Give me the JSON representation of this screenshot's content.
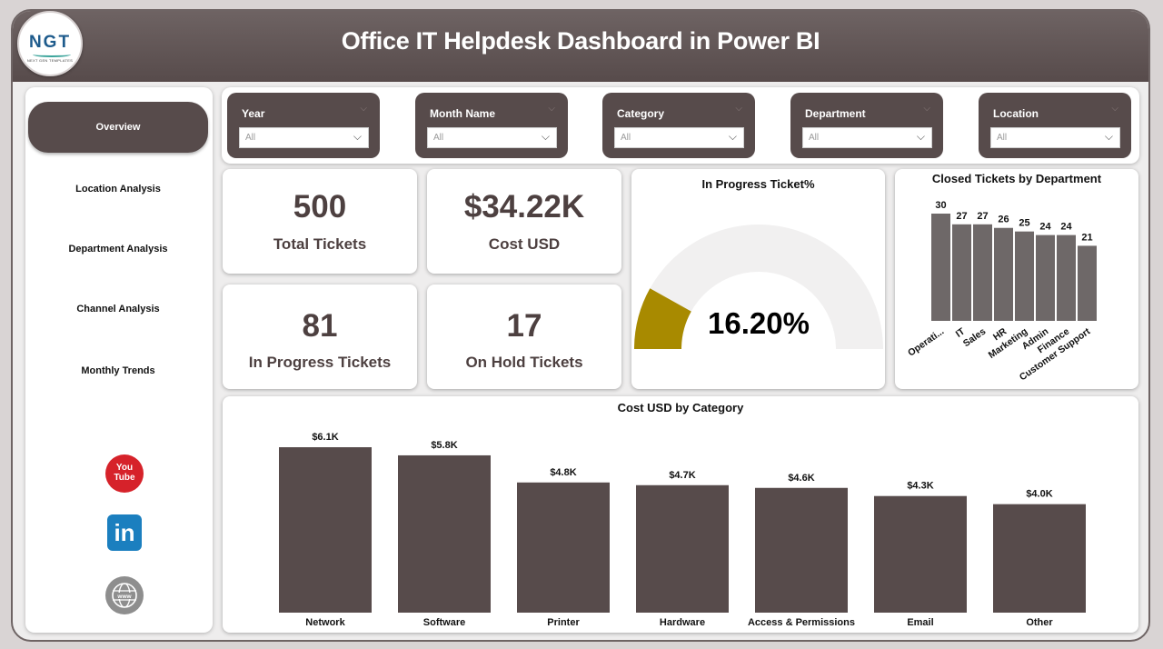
{
  "header": {
    "title": "Office IT Helpdesk Dashboard in Power BI",
    "logo_text": "NGT",
    "logo_subtext": "NEXT GEN TEMPLATES"
  },
  "sidebar": {
    "items": [
      {
        "label": "Overview",
        "active": true
      },
      {
        "label": "Location Analysis",
        "active": false
      },
      {
        "label": "Department Analysis",
        "active": false
      },
      {
        "label": "Channel Analysis",
        "active": false
      },
      {
        "label": "Monthly Trends",
        "active": false
      }
    ],
    "social": {
      "youtube": "You Tube",
      "linkedin": "in",
      "web": "www"
    }
  },
  "filters": [
    {
      "label": "Year",
      "value": "All"
    },
    {
      "label": "Month Name",
      "value": "All"
    },
    {
      "label": "Category",
      "value": "All"
    },
    {
      "label": "Department",
      "value": "All"
    },
    {
      "label": "Location",
      "value": "All"
    }
  ],
  "kpis": {
    "total_tickets": {
      "value": "500",
      "label": "Total Tickets"
    },
    "cost_usd": {
      "value": "$34.22K",
      "label": "Cost USD"
    },
    "in_progress": {
      "value": "81",
      "label": "In Progress Tickets"
    },
    "on_hold": {
      "value": "17",
      "label": "On Hold Tickets"
    }
  },
  "gauge": {
    "title": "In Progress Ticket%",
    "value_label": "16.20%",
    "fraction": 0.162,
    "fill_color": "#a88a00",
    "track_color": "#f1f0f0"
  },
  "colors": {
    "bar": "#574b4b",
    "bar_dept": "#6e6868",
    "header": "#574b4b",
    "gauge_fill": "#a88a00"
  },
  "chart_data": [
    {
      "type": "bar",
      "title": "Closed Tickets by Department",
      "categories": [
        "Operati...",
        "IT",
        "Sales",
        "HR",
        "Marketing",
        "Admin",
        "Finance",
        "Customer Support"
      ],
      "values": [
        30,
        27,
        27,
        26,
        25,
        24,
        24,
        21
      ],
      "data_labels": [
        "30",
        "27",
        "27",
        "26",
        "25",
        "24",
        "24",
        "21"
      ],
      "ylim": [
        0,
        30
      ],
      "grid": false
    },
    {
      "type": "bar",
      "title": "Cost USD by Category",
      "categories": [
        "Network",
        "Software",
        "Printer",
        "Hardware",
        "Access & Permissions",
        "Email",
        "Other"
      ],
      "values": [
        6.1,
        5.8,
        4.8,
        4.7,
        4.6,
        4.3,
        4.0
      ],
      "data_labels": [
        "$6.1K",
        "$5.8K",
        "$4.8K",
        "$4.7K",
        "$4.6K",
        "$4.3K",
        "$4.0K"
      ],
      "ylim": [
        0,
        6.1
      ],
      "grid": false
    }
  ]
}
